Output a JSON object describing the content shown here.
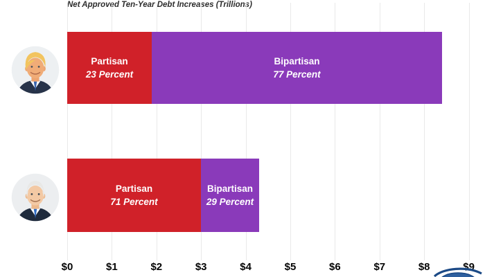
{
  "chart_data": {
    "type": "bar",
    "orientation": "horizontal",
    "stacked": true,
    "title": "Net Approved Ten-Year Debt Increases (Trillions)",
    "unit": "trillions of dollars",
    "x_ticks": [
      "$0",
      "$1",
      "$2",
      "$3",
      "$4",
      "$5",
      "$6",
      "$7",
      "$8",
      "$9"
    ],
    "x_range_trillions": [
      0,
      9
    ],
    "grid": true,
    "legend_position": "labels inside segments",
    "rows": [
      {
        "person": "Donald Trump",
        "total_trillions": 8.4,
        "segments": [
          {
            "label": "Partisan",
            "percent_label": "23 Percent",
            "percent": 23,
            "value_trillions": 1.9,
            "color": "#d02129"
          },
          {
            "label": "Bipartisan",
            "percent_label": "77 Percent",
            "percent": 77,
            "value_trillions": 6.5,
            "color": "#8a3aba"
          }
        ]
      },
      {
        "person": "Joe Biden",
        "total_trillions": 4.3,
        "segments": [
          {
            "label": "Partisan",
            "percent_label": "71 Percent",
            "percent": 71,
            "value_trillions": 3.0,
            "color": "#d02129"
          },
          {
            "label": "Bipartisan",
            "percent_label": "29 Percent",
            "percent": 29,
            "value_trillions": 1.3,
            "color": "#8a3aba"
          }
        ]
      }
    ]
  },
  "colors": {
    "partisan_red": "#d02129",
    "bipartisan_purple": "#8a3aba",
    "gridline": "#e9e9e9",
    "title_text": "#2d2d2d",
    "axis_text": "#050505",
    "bar_label_text": "#ffffff",
    "logo_blue_dark": "#1c4a86",
    "logo_blue_fill": "#2e5f9e"
  },
  "icons": {
    "trump_avatar": "trump-portrait-icon",
    "biden_avatar": "biden-portrait-icon",
    "logo": "partial-circular-logo"
  }
}
